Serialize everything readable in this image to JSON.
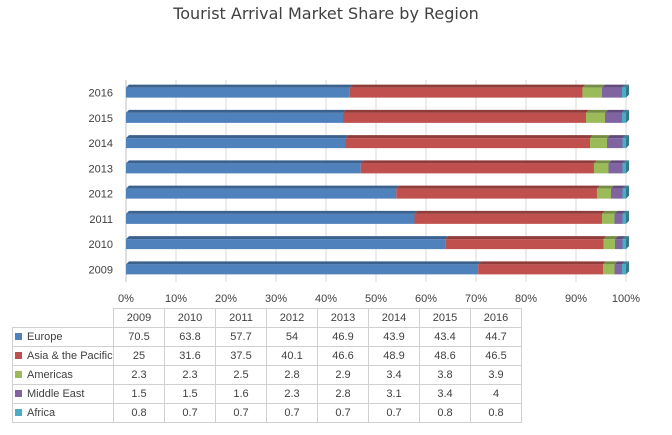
{
  "chart_data": {
    "type": "bar",
    "orientation": "horizontal",
    "stacked": "percent",
    "title": "Tourist Arrival Market Share by Region",
    "categories": [
      "2009",
      "2010",
      "2011",
      "2012",
      "2013",
      "2014",
      "2015",
      "2016"
    ],
    "x_ticks": [
      "0%",
      "10%",
      "20%",
      "30%",
      "40%",
      "50%",
      "60%",
      "70%",
      "80%",
      "90%",
      "100%"
    ],
    "xlim": [
      0,
      100
    ],
    "grid": true,
    "legend": "data table below chart",
    "series": [
      {
        "name": "Europe",
        "color": "#4f81bd",
        "values": [
          70.5,
          63.8,
          57.7,
          54,
          46.9,
          43.9,
          43.4,
          44.7
        ]
      },
      {
        "name": "Asia & the Pacific",
        "color": "#c0504d",
        "values": [
          25,
          31.6,
          37.5,
          40.1,
          46.6,
          48.9,
          48.6,
          46.5
        ]
      },
      {
        "name": "Americas",
        "color": "#9bbb59",
        "values": [
          2.3,
          2.3,
          2.5,
          2.8,
          2.9,
          3.4,
          3.8,
          3.9
        ]
      },
      {
        "name": "Middle East",
        "color": "#8064a2",
        "values": [
          1.5,
          1.5,
          1.6,
          2.3,
          2.8,
          3.1,
          3.4,
          4
        ]
      },
      {
        "name": "Africa",
        "color": "#4bacc6",
        "values": [
          0.8,
          0.7,
          0.7,
          0.7,
          0.7,
          0.7,
          0.8,
          0.8
        ]
      }
    ]
  }
}
